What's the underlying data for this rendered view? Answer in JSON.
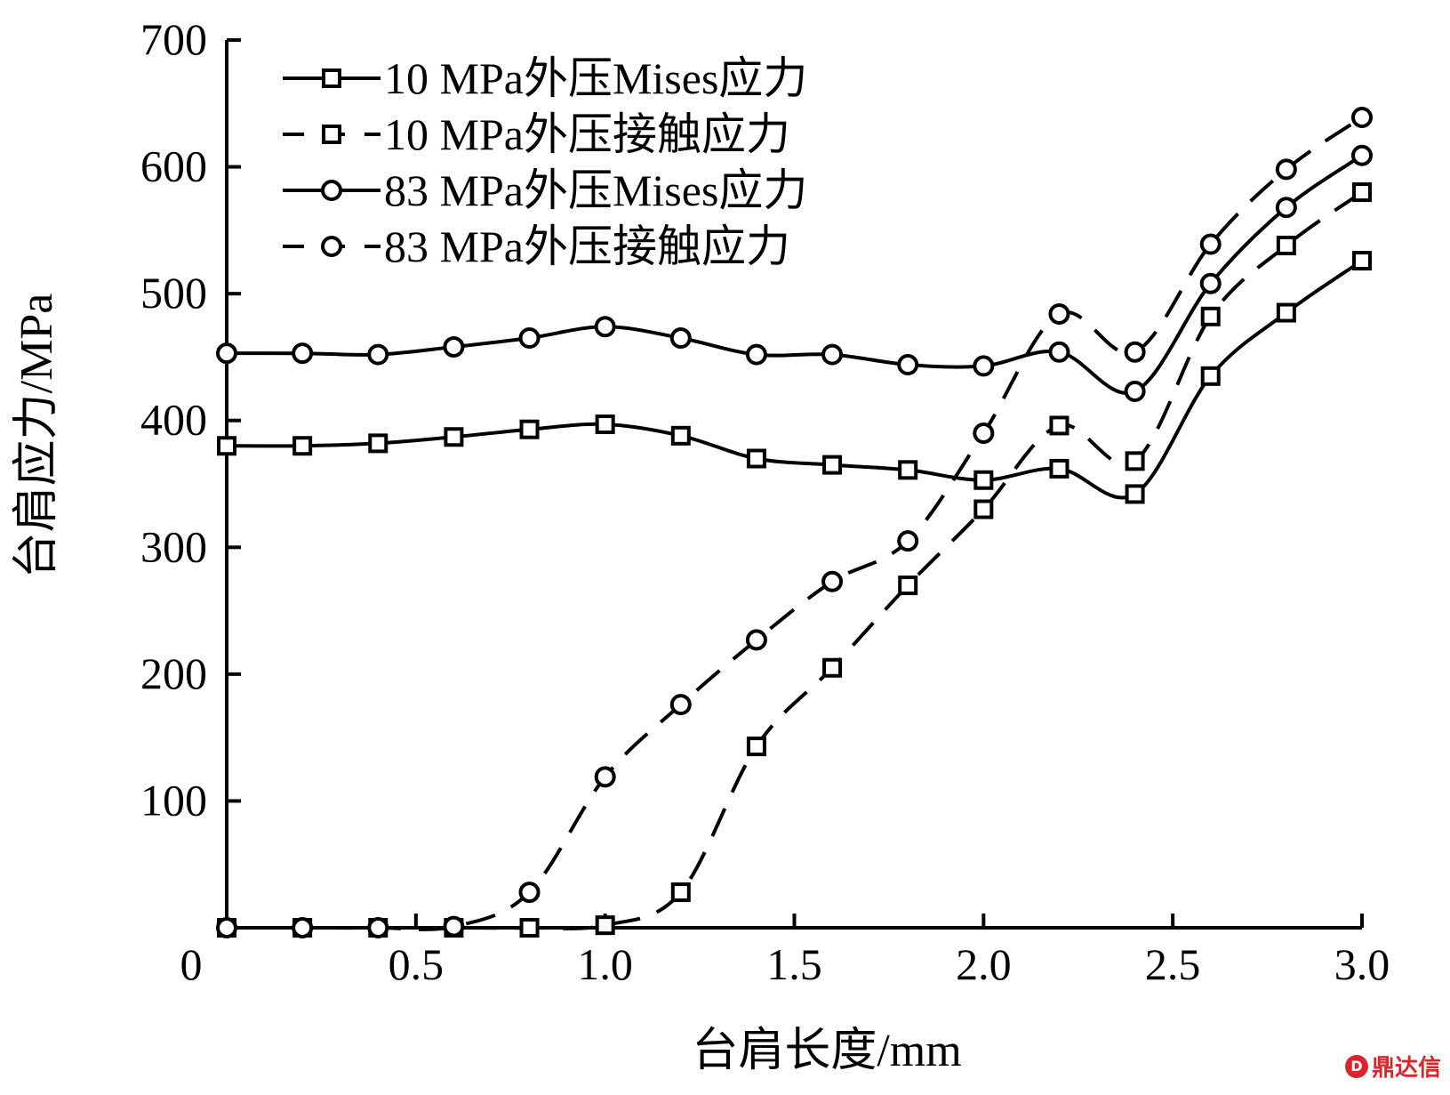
{
  "chart_data": {
    "type": "line",
    "title": "",
    "xlabel": "台肩长度/mm",
    "ylabel": "台肩应力/MPa",
    "xlim": [
      0,
      3.0
    ],
    "ylim": [
      0,
      700
    ],
    "x_ticks": [
      {
        "value": 0,
        "label": "0"
      },
      {
        "value": 0.5,
        "label": "0.5"
      },
      {
        "value": 1.0,
        "label": "1.0"
      },
      {
        "value": 1.5,
        "label": "1.5"
      },
      {
        "value": 2.0,
        "label": "2.0"
      },
      {
        "value": 2.5,
        "label": "2.5"
      },
      {
        "value": 3.0,
        "label": "3.0"
      }
    ],
    "y_ticks": [
      {
        "value": 100,
        "label": "100"
      },
      {
        "value": 200,
        "label": "200"
      },
      {
        "value": 300,
        "label": "300"
      },
      {
        "value": 400,
        "label": "400"
      },
      {
        "value": 500,
        "label": "500"
      },
      {
        "value": 600,
        "label": "600"
      },
      {
        "value": 700,
        "label": "700"
      }
    ],
    "grid": false,
    "legend_position": "top-left",
    "x": [
      0,
      0.2,
      0.4,
      0.6,
      0.8,
      1.0,
      1.2,
      1.4,
      1.6,
      1.8,
      2.0,
      2.2,
      2.4,
      2.6,
      2.8,
      3.0
    ],
    "series": [
      {
        "name": "10 MPa外压Mises应力",
        "marker": "square",
        "dash": "solid",
        "values": [
          380,
          380,
          382,
          387,
          393,
          397,
          388,
          370,
          365,
          361,
          353,
          362,
          342,
          435,
          485,
          526
        ]
      },
      {
        "name": "10 MPa外压接触应力",
        "marker": "square",
        "dash": "dashed",
        "values": [
          0,
          0,
          0,
          0,
          0,
          2,
          28,
          143,
          205,
          270,
          330,
          396,
          368,
          482,
          538,
          580
        ]
      },
      {
        "name": "83 MPa外压Mises应力",
        "marker": "circle",
        "dash": "solid",
        "values": [
          453,
          453,
          452,
          458,
          465,
          474,
          465,
          452,
          452,
          444,
          443,
          454,
          423,
          508,
          568,
          609
        ]
      },
      {
        "name": "83 MPa外压接触应力",
        "marker": "circle",
        "dash": "dashed",
        "values": [
          0,
          0,
          0,
          1,
          28,
          119,
          176,
          227,
          273,
          305,
          390,
          484,
          454,
          539,
          598,
          639
        ]
      }
    ]
  },
  "watermark": {
    "logo": "D",
    "text": "鼎达信"
  }
}
